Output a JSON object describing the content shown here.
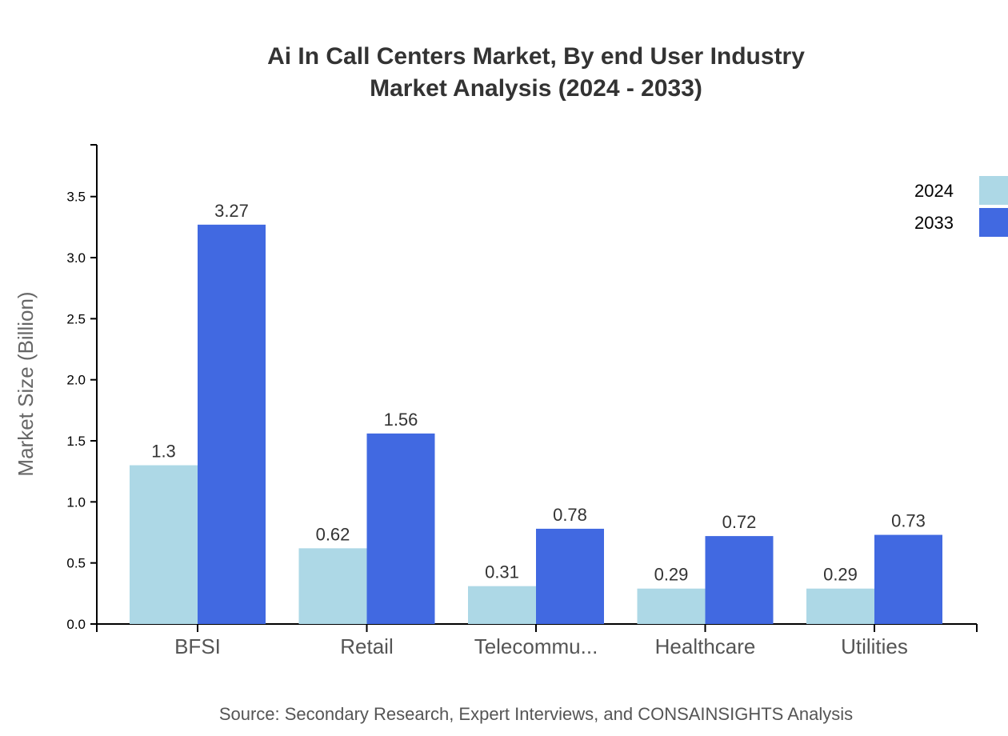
{
  "chart_data": {
    "type": "bar",
    "title": "Ai In Call Centers Market, By end User Industry",
    "subtitle": "Market Analysis (2024 - 2033)",
    "xlabel": "",
    "ylabel": "Market Size (Billion)",
    "ylim": [
      0,
      3.924
    ],
    "yticks": [
      0.0,
      0.5,
      1.0,
      1.5,
      2.0,
      2.5,
      3.0,
      3.5
    ],
    "categories": [
      "BFSI",
      "Retail",
      "Telecommu...",
      "Healthcare",
      "Utilities"
    ],
    "series": [
      {
        "name": "2024",
        "color": "#ADD8E6",
        "values": [
          1.3,
          0.62,
          0.31,
          0.29,
          0.29
        ]
      },
      {
        "name": "2033",
        "color": "#4169E1",
        "values": [
          3.27,
          1.56,
          0.78,
          0.72,
          0.73
        ]
      }
    ],
    "grid": false,
    "legend": "top-right",
    "source": "Source: Secondary Research, Expert Interviews, and CONSAINSIGHTS Analysis"
  }
}
